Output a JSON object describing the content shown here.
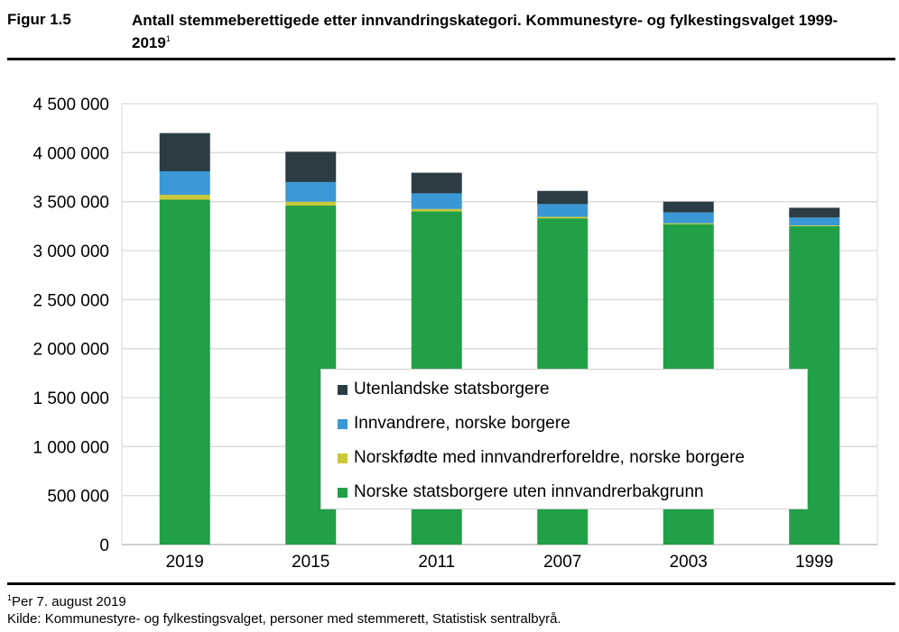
{
  "figure": {
    "label": "Figur 1.5",
    "title": "Antall stemmeberettigede etter innvandringskategori. Kommunestyre- og fylkestingsvalget 1999-2019",
    "title_footnote_mark": "1"
  },
  "footnote": {
    "mark": "1",
    "text": "Per 7. august 2019"
  },
  "source": "Kilde: Kommunestyre- og fylkestingsvalget, personer med stemmerett, Statistisk sentralbyrå.",
  "chart_data": {
    "type": "bar",
    "stacked": true,
    "categories": [
      "2019",
      "2015",
      "2011",
      "2007",
      "2003",
      "1999"
    ],
    "ylim": [
      0,
      4500000
    ],
    "yticks": [
      0,
      500000,
      1000000,
      1500000,
      2000000,
      2500000,
      3000000,
      3500000,
      4000000,
      4500000
    ],
    "ytick_labels": [
      "0",
      "500 000",
      "1 000 000",
      "1 500 000",
      "2 000 000",
      "2 500 000",
      "3 000 000",
      "3 500 000",
      "4 000 000",
      "4 500 000"
    ],
    "grid": true,
    "legend_position": "lower-right inside plot",
    "series": [
      {
        "name": "Norske statsborgere uten innvandrerbakgrunn",
        "color": "#21a048",
        "values": [
          3520000,
          3460000,
          3400000,
          3330000,
          3270000,
          3250000
        ]
      },
      {
        "name": "Norskfødte med innvandrerforeldre, norske borgere",
        "color": "#c9c93a",
        "values": [
          50000,
          40000,
          25000,
          15000,
          10000,
          8000
        ]
      },
      {
        "name": "Innvandrere, norske borgere",
        "color": "#3b98d6",
        "values": [
          240000,
          200000,
          160000,
          130000,
          110000,
          80000
        ]
      },
      {
        "name": "Utenlandske statsborgere",
        "color": "#2b3c45",
        "values": [
          390000,
          310000,
          210000,
          135000,
          110000,
          100000
        ]
      }
    ],
    "legend_order": [
      3,
      2,
      1,
      0
    ]
  }
}
